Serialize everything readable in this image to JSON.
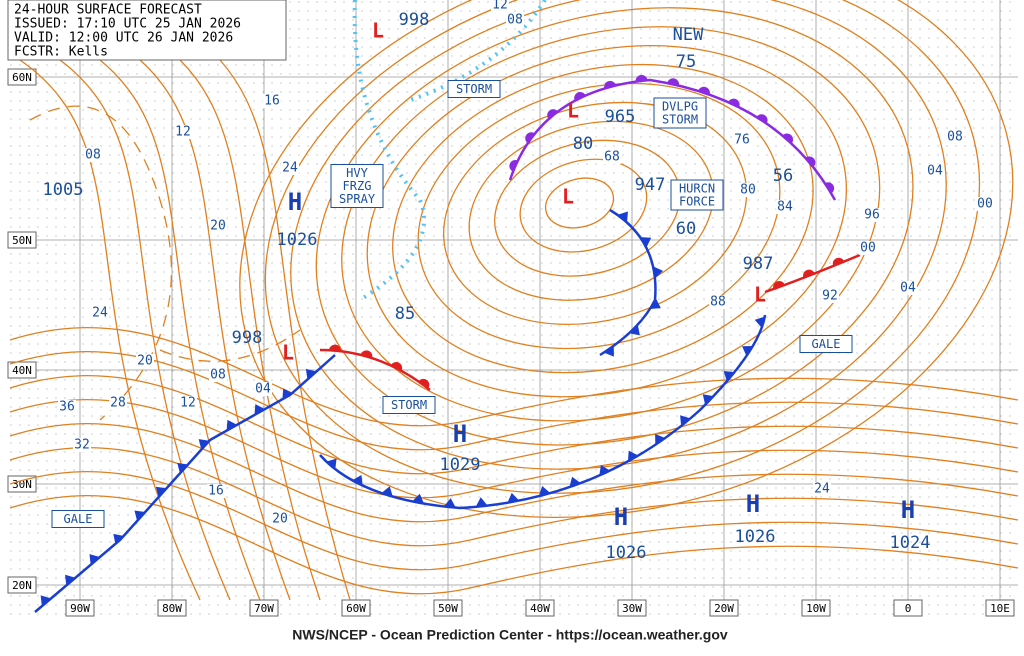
{
  "header": {
    "title": "24-HOUR SURFACE FORECAST",
    "issued": "ISSUED: 17:10 UTC 25 JAN 2026",
    "valid": "VALID:  12:00 UTC 26 JAN 2026",
    "forecaster": "FCSTR:  Kells"
  },
  "latitude_labels": [
    "60N",
    "50N",
    "40N",
    "30N",
    "20N"
  ],
  "longitude_labels": [
    "90W",
    "80W",
    "70W",
    "60W",
    "50W",
    "40W",
    "30W",
    "20W",
    "10W",
    "0",
    "10E"
  ],
  "highs": [
    "H",
    "H",
    "H",
    "H",
    "H"
  ],
  "lows": [
    "L",
    "L",
    "L",
    "L",
    "L"
  ],
  "pressure_labels": [
    "998",
    "75",
    "965",
    "80",
    "947",
    "60",
    "56",
    "987",
    "1005",
    "1026",
    "998",
    "85",
    "1029",
    "1026",
    "1026",
    "1024",
    "NEW"
  ],
  "isobar_labels": [
    "12",
    "08",
    "16",
    "12",
    "08",
    "24",
    "20",
    "24",
    "20",
    "08",
    "04",
    "12",
    "36",
    "28",
    "32",
    "16",
    "20",
    "68",
    "76",
    "80",
    "84",
    "88",
    "92",
    "96",
    "00",
    "04",
    "08",
    "04",
    "00",
    "24"
  ],
  "warnings": [
    [
      "STORM"
    ],
    [
      "HVY",
      "FRZG",
      "SPRAY"
    ],
    [
      "DVLPG",
      "STORM"
    ],
    [
      "HURCN",
      "FORCE"
    ],
    [
      "STORM"
    ],
    [
      "GALE"
    ],
    [
      "GALE"
    ]
  ],
  "footer": "NWS/NCEP - Ocean Prediction Center - https://ocean.weather.gov"
}
